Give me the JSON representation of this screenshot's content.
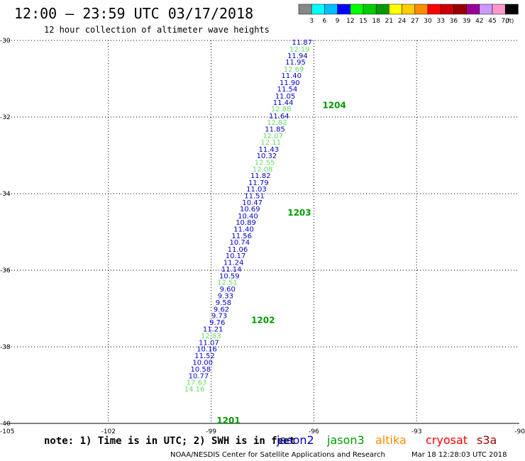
{
  "header": {
    "title": "12:00 – 23:59 UTC 03/17/2018",
    "subtitle": "12 hour collection of altimeter wave heights"
  },
  "scale": {
    "labels": [
      "3",
      "6",
      "9",
      "12",
      "15",
      "18",
      "21",
      "24",
      "27",
      "30",
      "33",
      "36",
      "39",
      "42",
      "45",
      "70"
    ],
    "unit": "(ft)",
    "colors": [
      "#888888",
      "#00ffff",
      "#00bfff",
      "#0000ff",
      "#00ff00",
      "#00cc00",
      "#009900",
      "#ffff00",
      "#ffcc00",
      "#ff8c00",
      "#ff0000",
      "#cc0000",
      "#990000",
      "#990099",
      "#cc99ff",
      "#ff99cc",
      "#000000"
    ]
  },
  "axes": {
    "lat_labels": [
      "-30",
      "-32",
      "-34",
      "-36",
      "-38",
      "-40"
    ],
    "lat_values": [
      -30,
      -32,
      -34,
      -36,
      -38,
      -40
    ],
    "lon_labels": [
      "-105",
      "-102",
      "-99",
      "-96",
      "-93",
      "-90"
    ],
    "lon_values": [
      -105,
      -102,
      -99,
      -96,
      -93,
      -90
    ]
  },
  "footer": {
    "note": "note: 1) Time is in UTC; 2) SWH is in feet",
    "credit": "NOAA/NESDIS Center for Satellite Applications and Research",
    "timestamp": "Mar 18 12:28:03 UTC 2018"
  },
  "satellites": [
    {
      "name": "jason2",
      "color": "#0000cc"
    },
    {
      "name": "jason3",
      "color": "#009900"
    },
    {
      "name": "altika",
      "color": "#ff8c00"
    },
    {
      "name": "cryosat",
      "color": "#ff0000"
    },
    {
      "name": "s3a",
      "color": "#990000"
    }
  ],
  "colors": {
    "jason2": "#0000cc",
    "jason3_light": "#66dd66",
    "time_label": "#009900"
  },
  "track": [
    {
      "v": "11.87",
      "c": "b",
      "lon": -96.05,
      "lat": -30.04
    },
    {
      "v": "12.19",
      "c": "g",
      "lon": -96.12,
      "lat": -30.22
    },
    {
      "v": "11.94",
      "c": "b",
      "lon": -96.18,
      "lat": -30.39
    },
    {
      "v": "11.95",
      "c": "b",
      "lon": -96.24,
      "lat": -30.56
    },
    {
      "v": "12.69",
      "c": "g",
      "lon": -96.29,
      "lat": -30.74
    },
    {
      "v": "11.40",
      "c": "b",
      "lon": -96.36,
      "lat": -30.91
    },
    {
      "v": "11.90",
      "c": "b",
      "lon": -96.41,
      "lat": -31.09
    },
    {
      "v": "11.54",
      "c": "b",
      "lon": -96.48,
      "lat": -31.26
    },
    {
      "v": "11.05",
      "c": "b",
      "lon": -96.54,
      "lat": -31.44
    },
    {
      "v": "11.44",
      "c": "b",
      "lon": -96.6,
      "lat": -31.61
    },
    {
      "v": "12.88",
      "c": "g",
      "lon": -96.66,
      "lat": -31.78
    },
    {
      "v": "11.64",
      "c": "b",
      "lon": -96.72,
      "lat": -31.96
    },
    {
      "v": "12.82",
      "c": "g",
      "lon": -96.78,
      "lat": -32.13
    },
    {
      "v": "11.85",
      "c": "b",
      "lon": -96.84,
      "lat": -32.31
    },
    {
      "v": "12.07",
      "c": "g",
      "lon": -96.9,
      "lat": -32.48
    },
    {
      "v": "12.11",
      "c": "g",
      "lon": -96.96,
      "lat": -32.65
    },
    {
      "v": "11.43",
      "c": "b",
      "lon": -97.02,
      "lat": -32.83
    },
    {
      "v": "10.32",
      "c": "b",
      "lon": -97.08,
      "lat": -33.0
    },
    {
      "v": "12.55",
      "c": "g",
      "lon": -97.14,
      "lat": -33.18
    },
    {
      "v": "12.08",
      "c": "g",
      "lon": -97.2,
      "lat": -33.35
    },
    {
      "v": "11.82",
      "c": "b",
      "lon": -97.26,
      "lat": -33.52
    },
    {
      "v": "11.79",
      "c": "b",
      "lon": -97.32,
      "lat": -33.7
    },
    {
      "v": "11.03",
      "c": "b",
      "lon": -97.38,
      "lat": -33.87
    },
    {
      "v": "11.51",
      "c": "b",
      "lon": -97.44,
      "lat": -34.05
    },
    {
      "v": "10.47",
      "c": "b",
      "lon": -97.5,
      "lat": -34.22
    },
    {
      "v": "10.69",
      "c": "b",
      "lon": -97.57,
      "lat": -34.39
    },
    {
      "v": "10.40",
      "c": "b",
      "lon": -97.63,
      "lat": -34.57
    },
    {
      "v": "10.89",
      "c": "b",
      "lon": -97.69,
      "lat": -34.74
    },
    {
      "v": "11.40",
      "c": "b",
      "lon": -97.75,
      "lat": -34.92
    },
    {
      "v": "11.56",
      "c": "b",
      "lon": -97.81,
      "lat": -35.09
    },
    {
      "v": "10.74",
      "c": "b",
      "lon": -97.87,
      "lat": -35.26
    },
    {
      "v": "11.06",
      "c": "b",
      "lon": -97.93,
      "lat": -35.44
    },
    {
      "v": "10.17",
      "c": "b",
      "lon": -97.99,
      "lat": -35.61
    },
    {
      "v": "11.24",
      "c": "b",
      "lon": -98.05,
      "lat": -35.79
    },
    {
      "v": "11.14",
      "c": "b",
      "lon": -98.11,
      "lat": -35.96
    },
    {
      "v": "10.59",
      "c": "b",
      "lon": -98.17,
      "lat": -36.14
    },
    {
      "v": "12.51",
      "c": "g",
      "lon": -98.23,
      "lat": -36.31
    },
    {
      "v": "9.60",
      "c": "b",
      "lon": -98.29,
      "lat": -36.48
    },
    {
      "v": "9.33",
      "c": "b",
      "lon": -98.35,
      "lat": -36.66
    },
    {
      "v": "9.58",
      "c": "b",
      "lon": -98.41,
      "lat": -36.83
    },
    {
      "v": "9.62",
      "c": "b",
      "lon": -98.47,
      "lat": -37.01
    },
    {
      "v": "9.73",
      "c": "b",
      "lon": -98.53,
      "lat": -37.18
    },
    {
      "v": "9.76",
      "c": "b",
      "lon": -98.59,
      "lat": -37.35
    },
    {
      "v": "11.21",
      "c": "b",
      "lon": -98.65,
      "lat": -37.53
    },
    {
      "v": "12.83",
      "c": "g",
      "lon": -98.71,
      "lat": -37.7
    },
    {
      "v": "11.07",
      "c": "b",
      "lon": -98.77,
      "lat": -37.88
    },
    {
      "v": "10.16",
      "c": "b",
      "lon": -98.83,
      "lat": -38.05
    },
    {
      "v": "11.52",
      "c": "b",
      "lon": -98.89,
      "lat": -38.22
    },
    {
      "v": "10.00",
      "c": "b",
      "lon": -98.95,
      "lat": -38.4
    },
    {
      "v": "10.58",
      "c": "b",
      "lon": -99.01,
      "lat": -38.57
    },
    {
      "v": "10.77",
      "c": "b",
      "lon": -99.07,
      "lat": -38.75
    },
    {
      "v": "17.63",
      "c": "g",
      "lon": -99.13,
      "lat": -38.92
    },
    {
      "v": "14.16",
      "c": "g",
      "lon": -99.19,
      "lat": -39.09
    }
  ],
  "time_labels": [
    {
      "text": "1204",
      "lon": -95.75,
      "lat": -31.68
    },
    {
      "text": "1203",
      "lon": -96.77,
      "lat": -34.48
    },
    {
      "text": "1202",
      "lon": -97.83,
      "lat": -37.29
    },
    {
      "text": "1201",
      "lon": -98.84,
      "lat": -39.91
    }
  ]
}
